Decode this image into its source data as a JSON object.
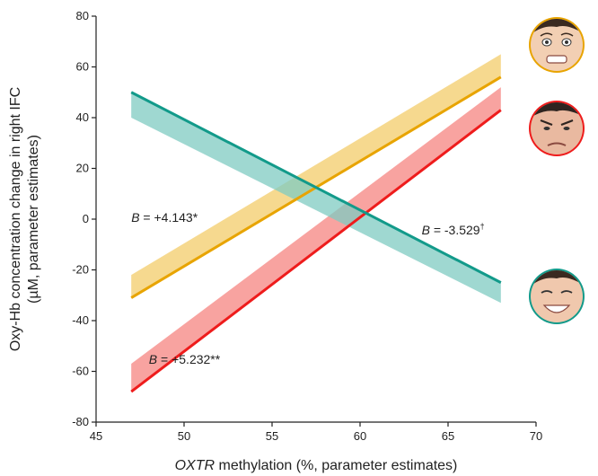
{
  "chart_data": {
    "type": "line",
    "title": "",
    "xlabel_italic": "OXTR",
    "xlabel_rest": " methylation (%, parameter estimates)",
    "ylabel_line1": "Oxy-Hb concentration change in right IFC",
    "ylabel_line2": "(µM, parameter estimates)",
    "xlim": [
      45,
      70
    ],
    "ylim": [
      -80,
      80
    ],
    "x_ticks": [
      "45",
      "50",
      "55",
      "60",
      "65",
      "70"
    ],
    "y_ticks": [
      "-80",
      "-60",
      "-40",
      "-20",
      "0",
      "20",
      "40",
      "60",
      "80"
    ],
    "grid": false,
    "series": [
      {
        "key": "fear",
        "color": "#e8a400",
        "band_color": "#f3cc6a",
        "icon": "fearful-face-icon",
        "x": [
          47,
          68
        ],
        "y": [
          -31,
          56
        ],
        "band_upper": [
          -22,
          65
        ],
        "annotation": {
          "italic": "B",
          "rest": " = +4.143*",
          "x": 47,
          "y": -1
        }
      },
      {
        "key": "anger",
        "color": "#ee1c1c",
        "band_color": "#f58480",
        "icon": "angry-face-icon",
        "x": [
          47,
          68
        ],
        "y": [
          -68,
          43
        ],
        "band_upper": [
          -57,
          52
        ],
        "annotation": {
          "italic": "B",
          "rest": " = +5.232**",
          "x": 48,
          "y": -57
        }
      },
      {
        "key": "happy",
        "color": "#129a8a",
        "band_color": "#7fcbc2",
        "icon": "happy-face-icon",
        "x": [
          47,
          68
        ],
        "y": [
          50,
          -25
        ],
        "band_lower": [
          40,
          -33
        ],
        "annotation": {
          "italic": "B",
          "rest": " = -3.529",
          "sup": "†",
          "x": 63.5,
          "y": -6
        }
      }
    ]
  }
}
